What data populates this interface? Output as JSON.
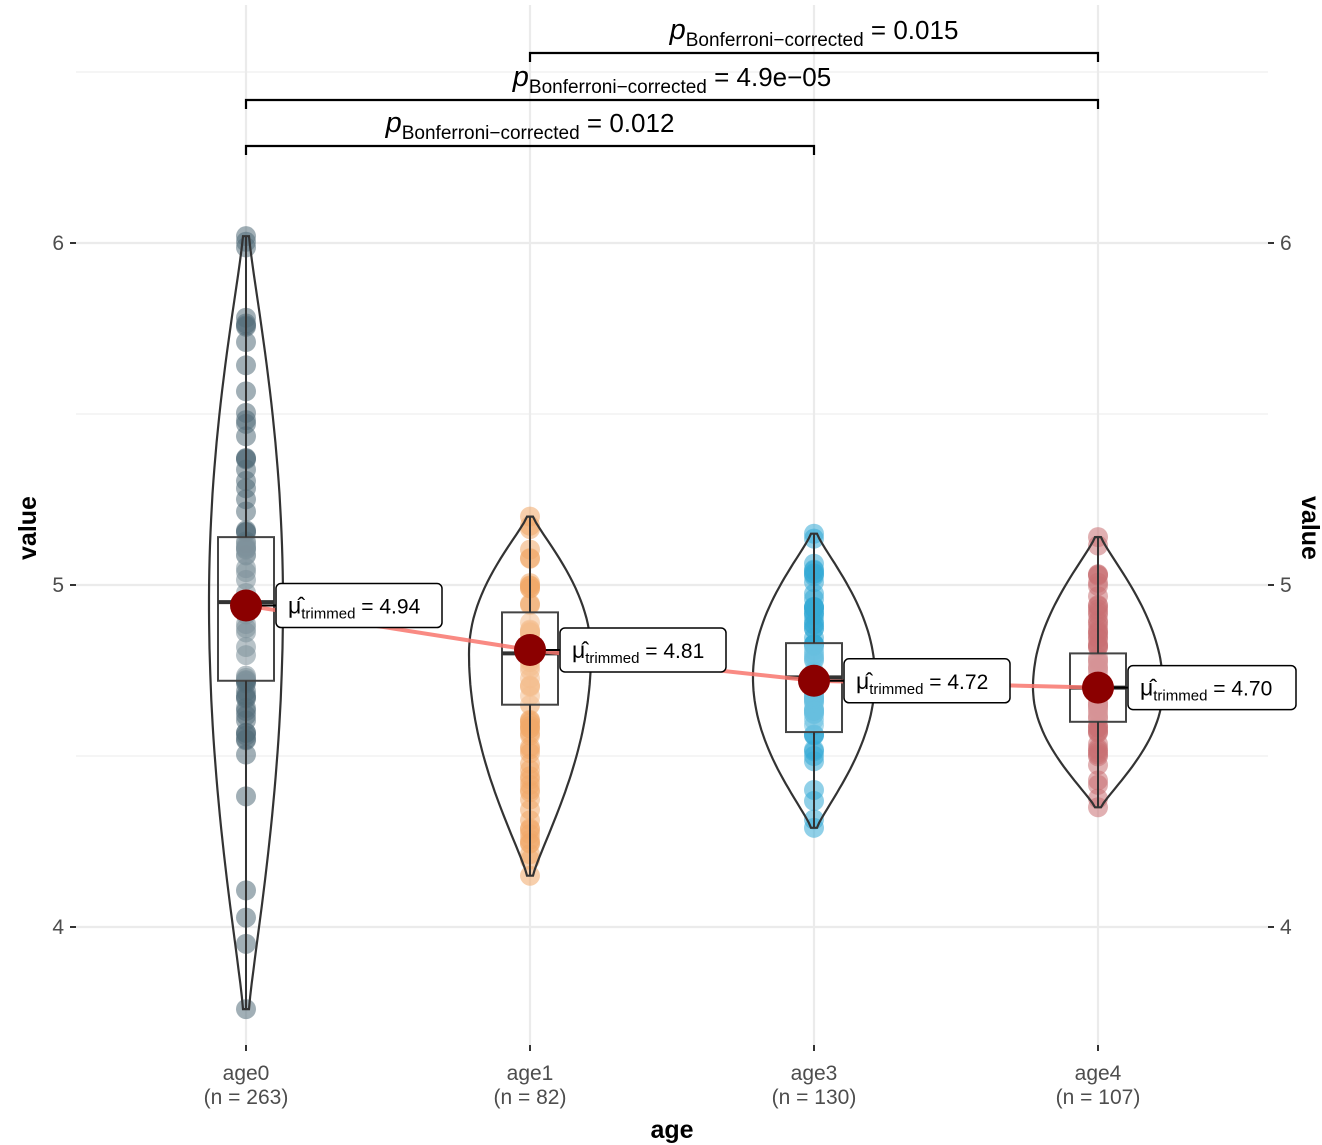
{
  "chart_data": {
    "type": "violin",
    "xlabel": "age",
    "ylabel": "value",
    "ylabel_right": "value",
    "ylim": [
      3.65,
      6.7
    ],
    "yticks": [
      4,
      5,
      6
    ],
    "grid": true,
    "groups": [
      {
        "name": "age0",
        "n_label": "(n = 263)",
        "color": "#546e7a",
        "min": 3.76,
        "max": 6.02,
        "q1": 4.72,
        "median": 4.95,
        "q3": 5.14,
        "trimmed_mean": 4.94,
        "mean_label": "4.94"
      },
      {
        "name": "age1",
        "n_label": "(n = 82)",
        "color": "#f0a868",
        "min": 4.15,
        "max": 5.2,
        "q1": 4.65,
        "median": 4.8,
        "q3": 4.92,
        "trimmed_mean": 4.81,
        "mean_label": "4.81"
      },
      {
        "name": "age3",
        "n_label": "(n = 130)",
        "color": "#35aad6",
        "min": 4.29,
        "max": 5.15,
        "q1": 4.57,
        "median": 4.73,
        "q3": 4.83,
        "trimmed_mean": 4.72,
        "mean_label": "4.72"
      },
      {
        "name": "age4",
        "n_label": "(n = 107)",
        "color": "#c97072",
        "min": 4.35,
        "max": 5.14,
        "q1": 4.6,
        "median": 4.7,
        "q3": 4.8,
        "trimmed_mean": 4.7,
        "mean_label": "4.70"
      }
    ],
    "mean_label_prefix": "μ̂",
    "mean_label_subscript": "trimmed",
    "mean_label_eq": "=",
    "trend_color": "#f8766d",
    "mean_point_color": "#8b0000",
    "pairwise": [
      {
        "from": "age1",
        "to": "age4",
        "p_symbol": "p",
        "p_subscript": "Bonferroni−corrected",
        "p_value": "= 0.015"
      },
      {
        "from": "age0",
        "to": "age4",
        "p_symbol": "p",
        "p_subscript": "Bonferroni−corrected",
        "p_value": "= 4.9e−05"
      },
      {
        "from": "age0",
        "to": "age3",
        "p_symbol": "p",
        "p_subscript": "Bonferroni−corrected",
        "p_value": "= 0.012"
      }
    ]
  }
}
